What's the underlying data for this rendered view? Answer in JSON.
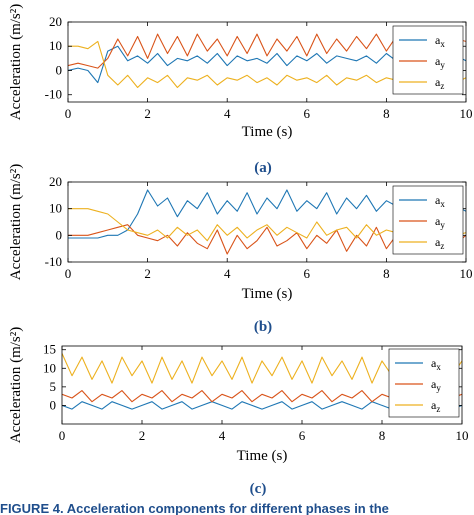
{
  "colors": {
    "ax": "#1f77b4",
    "ay": "#d9541a",
    "az": "#edb120",
    "panel_label": "#1f4e8c"
  },
  "chart_data": [
    {
      "type": "line",
      "panel_label": "(a)",
      "xlabel": "Time (s)",
      "ylabel": "Acceleration (m/s²)",
      "xlim": [
        0,
        10
      ],
      "ylim": [
        -13,
        20
      ],
      "x_ticks": [
        0,
        2,
        4,
        6,
        8,
        10
      ],
      "y_ticks": [
        -10,
        0,
        10,
        20
      ],
      "legend_position": "top-right",
      "x": [
        0,
        0.25,
        0.5,
        0.75,
        1,
        1.25,
        1.5,
        1.75,
        2,
        2.25,
        2.5,
        2.75,
        3,
        3.25,
        3.5,
        3.75,
        4,
        4.25,
        4.5,
        4.75,
        5,
        5.25,
        5.5,
        5.75,
        6,
        6.25,
        6.5,
        6.75,
        7,
        7.25,
        7.5,
        7.75,
        8,
        8.25,
        8.5,
        8.75,
        9,
        9.25,
        9.5,
        9.75,
        10
      ],
      "series": [
        {
          "name": "a_x",
          "label_main": "a",
          "label_sub": "x",
          "color": "ax",
          "values": [
            0,
            1,
            0,
            -5,
            8,
            10,
            4,
            6,
            3,
            7,
            2,
            5,
            4,
            6,
            3,
            7,
            2,
            6,
            4,
            5,
            3,
            7,
            2,
            6,
            4,
            7,
            3,
            6,
            5,
            4,
            6,
            3,
            7,
            4,
            6,
            3,
            7,
            5,
            4,
            6,
            4
          ]
        },
        {
          "name": "a_y",
          "label_main": "a",
          "label_sub": "y",
          "color": "ay",
          "values": [
            2,
            3,
            2,
            1,
            5,
            13,
            6,
            14,
            5,
            15,
            7,
            14,
            6,
            15,
            8,
            13,
            6,
            14,
            7,
            15,
            6,
            13,
            8,
            14,
            6,
            15,
            7,
            13,
            8,
            14,
            9,
            15,
            8,
            14,
            10,
            15,
            9,
            14,
            11,
            13,
            12
          ]
        },
        {
          "name": "a_z",
          "label_main": "a",
          "label_sub": "z",
          "color": "az",
          "values": [
            10,
            10,
            9,
            12,
            -2,
            -6,
            -2,
            -7,
            -3,
            -5,
            -2,
            -7,
            -3,
            -4,
            -2,
            -6,
            -3,
            -4,
            -2,
            -5,
            -3,
            -6,
            -2,
            -4,
            -3,
            -5,
            -2,
            -6,
            -3,
            -4,
            -2,
            -5,
            -3,
            -4,
            -2,
            -6,
            -3,
            -4,
            -2,
            -5,
            -3
          ]
        }
      ]
    },
    {
      "type": "line",
      "panel_label": "(b)",
      "xlabel": "Time (s)",
      "ylabel": "Acceleration (m/s²)",
      "xlim": [
        0,
        10
      ],
      "ylim": [
        -10,
        20
      ],
      "x_ticks": [
        0,
        2,
        4,
        6,
        8,
        10
      ],
      "y_ticks": [
        -10,
        0,
        10,
        20
      ],
      "legend_position": "top-right",
      "x": [
        0,
        0.25,
        0.5,
        0.75,
        1,
        1.25,
        1.5,
        1.75,
        2,
        2.25,
        2.5,
        2.75,
        3,
        3.25,
        3.5,
        3.75,
        4,
        4.25,
        4.5,
        4.75,
        5,
        5.25,
        5.5,
        5.75,
        6,
        6.25,
        6.5,
        6.75,
        7,
        7.25,
        7.5,
        7.75,
        8,
        8.25,
        8.5,
        8.75,
        9,
        9.25,
        9.5,
        9.75,
        10
      ],
      "series": [
        {
          "name": "a_x",
          "label_main": "a",
          "label_sub": "x",
          "color": "ax",
          "values": [
            -1,
            -1,
            -1,
            -1,
            0,
            0,
            2,
            8,
            17,
            11,
            14,
            7,
            13,
            10,
            16,
            8,
            13,
            9,
            16,
            8,
            14,
            10,
            17,
            9,
            13,
            10,
            16,
            8,
            14,
            10,
            15,
            9,
            13,
            11,
            16,
            8,
            14,
            10,
            13,
            11,
            9
          ]
        },
        {
          "name": "a_y",
          "label_main": "a",
          "label_sub": "y",
          "color": "ay",
          "values": [
            0,
            0,
            0,
            1,
            2,
            3,
            4,
            0,
            -1,
            -2,
            0,
            -4,
            1,
            -3,
            -5,
            2,
            -7,
            0,
            -5,
            -2,
            3,
            -4,
            -2,
            1,
            -5,
            0,
            -3,
            2,
            -6,
            0,
            -4,
            3,
            -5,
            0,
            -2,
            4,
            -4,
            0,
            5,
            -3,
            0
          ]
        },
        {
          "name": "a_z",
          "label_main": "a",
          "label_sub": "z",
          "color": "az",
          "values": [
            10,
            10,
            10,
            9,
            8,
            5,
            2,
            1,
            0,
            2,
            -1,
            3,
            0,
            2,
            -2,
            4,
            0,
            3,
            -1,
            2,
            4,
            0,
            3,
            1,
            -1,
            5,
            0,
            2,
            3,
            -1,
            4,
            0,
            2,
            1,
            5,
            0,
            3,
            -1,
            2,
            0,
            1
          ]
        }
      ]
    },
    {
      "type": "line",
      "panel_label": "(c)",
      "xlabel": "Time (s)",
      "ylabel": "Acceleration (m/s²)",
      "xlim": [
        0,
        10
      ],
      "ylim": [
        -5,
        16
      ],
      "x_ticks": [
        0,
        2,
        4,
        6,
        8,
        10
      ],
      "y_ticks": [
        0,
        5,
        10,
        15
      ],
      "legend_position": "top-right",
      "x": [
        0,
        0.25,
        0.5,
        0.75,
        1,
        1.25,
        1.5,
        1.75,
        2,
        2.25,
        2.5,
        2.75,
        3,
        3.25,
        3.5,
        3.75,
        4,
        4.25,
        4.5,
        4.75,
        5,
        5.25,
        5.5,
        5.75,
        6,
        6.25,
        6.5,
        6.75,
        7,
        7.25,
        7.5,
        7.75,
        8,
        8.25,
        8.5,
        8.75,
        9,
        9.25,
        9.5,
        9.75,
        10
      ],
      "series": [
        {
          "name": "a_x",
          "label_main": "a",
          "label_sub": "x",
          "color": "ax",
          "values": [
            0,
            -1,
            1,
            0,
            -1,
            1,
            0,
            -1,
            0,
            1,
            -1,
            0,
            1,
            -1,
            0,
            1,
            0,
            -1,
            1,
            0,
            -1,
            0,
            1,
            -1,
            0,
            1,
            -1,
            0,
            1,
            0,
            -1,
            1,
            0,
            -1,
            0,
            1,
            -1,
            0,
            1,
            -1,
            0
          ]
        },
        {
          "name": "a_y",
          "label_main": "a",
          "label_sub": "y",
          "color": "ay",
          "values": [
            3,
            2,
            4,
            1,
            3,
            2,
            4,
            1,
            3,
            2,
            4,
            1,
            3,
            2,
            4,
            1,
            3,
            2,
            4,
            1,
            3,
            2,
            4,
            1,
            3,
            2,
            4,
            1,
            3,
            2,
            4,
            1,
            3,
            2,
            4,
            1,
            3,
            2,
            4,
            2,
            3
          ]
        },
        {
          "name": "a_z",
          "label_main": "a",
          "label_sub": "z",
          "color": "az",
          "values": [
            14,
            8,
            13,
            7,
            12,
            6,
            13,
            8,
            12,
            6,
            13,
            7,
            12,
            6,
            13,
            8,
            12,
            7,
            13,
            6,
            12,
            8,
            13,
            7,
            12,
            6,
            13,
            8,
            12,
            7,
            13,
            6,
            12,
            8,
            13,
            7,
            12,
            6,
            13,
            8,
            12
          ]
        }
      ]
    }
  ],
  "caption_fragment": "FIGURE 4. Acceleration components for different phases in the"
}
